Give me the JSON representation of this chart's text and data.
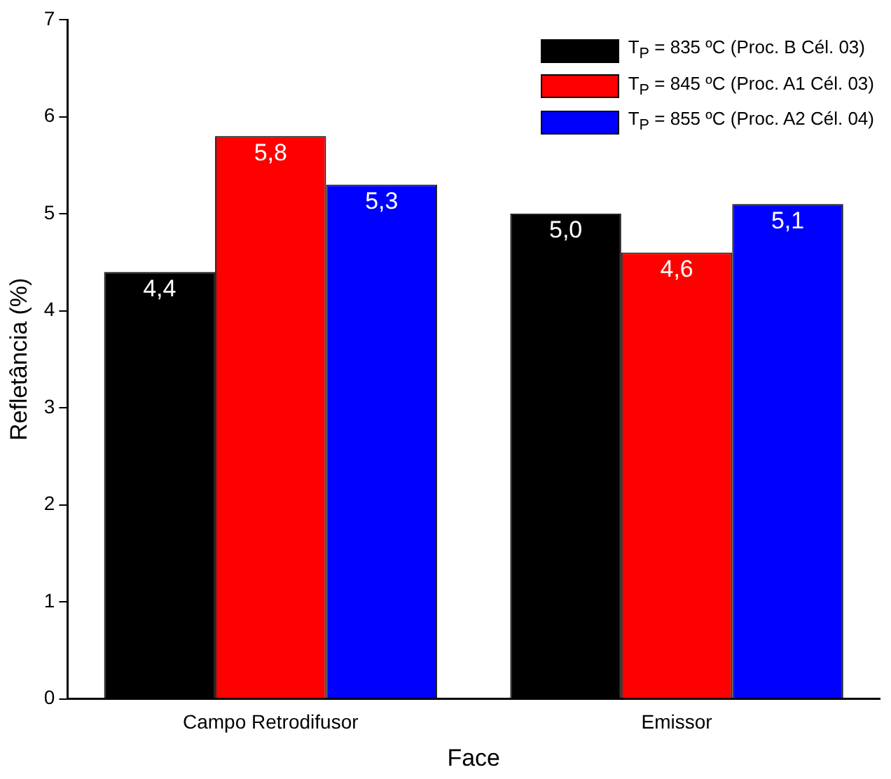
{
  "chart_data": {
    "type": "bar",
    "xlabel": "Face",
    "ylabel": "Refletância (%)",
    "categories": [
      "Campo Retrodifusor",
      "Emissor"
    ],
    "series": [
      {
        "name": "T$_{P}$ = 835 ºC (Proc. B Cél. 03)",
        "color": "#000000",
        "values": [
          4.4,
          5.0
        ],
        "value_labels": [
          "4,4",
          "5,0"
        ]
      },
      {
        "name": "T$_{P}$ = 845 ºC (Proc. A1 Cél. 03)",
        "color": "#ff0000",
        "values": [
          5.8,
          4.6
        ],
        "value_labels": [
          "5,8",
          "4,6"
        ]
      },
      {
        "name": "T$_{P}$ = 855 ºC (Proc. A2 Cél. 04)",
        "color": "#0000ff",
        "values": [
          5.3,
          5.1
        ],
        "value_labels": [
          "5,3",
          "5,1"
        ]
      }
    ],
    "ylim": [
      0,
      7
    ],
    "yticks": [
      0,
      1,
      2,
      3,
      4,
      5,
      6,
      7
    ],
    "grid": false,
    "legend": "top right"
  }
}
